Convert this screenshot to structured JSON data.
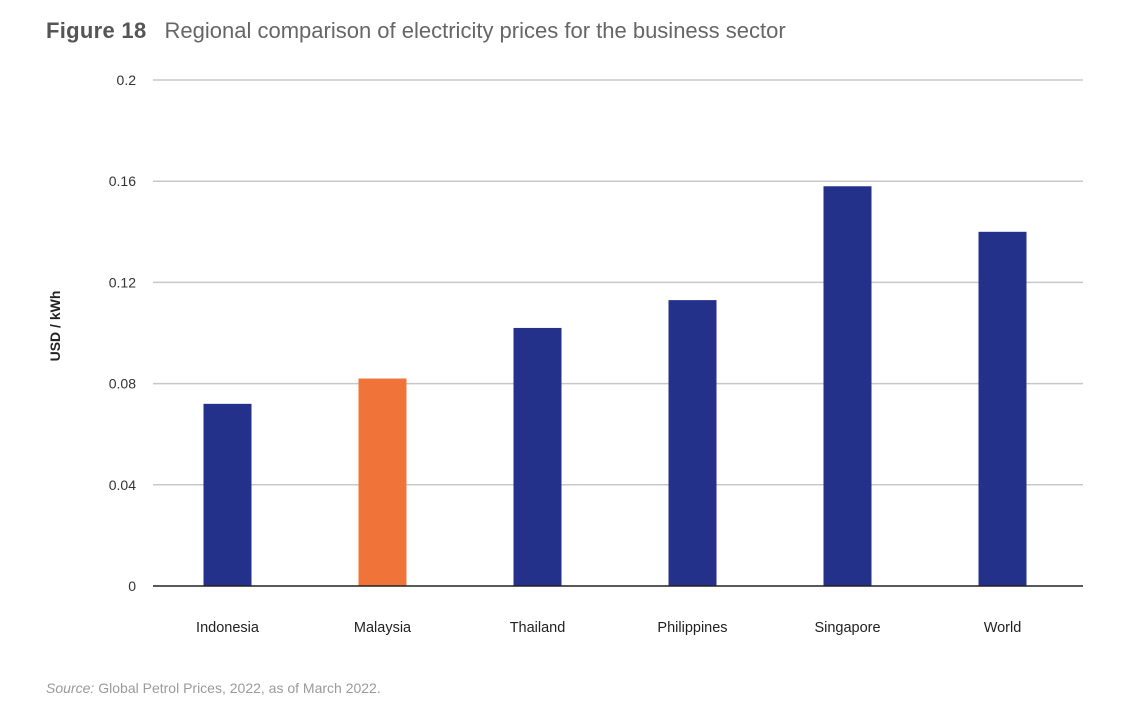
{
  "figure_label": "Figure 18",
  "source_label": "Source:",
  "source_text": "Global Petrol Prices, 2022, as of March 2022.",
  "chart_data": {
    "type": "bar",
    "title": "Regional comparison of electricity prices for the business sector",
    "xlabel": "",
    "ylabel": "USD / kWh",
    "ylim": [
      0,
      0.2
    ],
    "yticks": [
      "0",
      "0.04",
      "0.08",
      "0.12",
      "0.16",
      "0.2"
    ],
    "grid": true,
    "categories": [
      "Indonesia",
      "Malaysia",
      "Thailand",
      "Philippines",
      "Singapore",
      "World"
    ],
    "values": [
      0.072,
      0.082,
      0.102,
      0.113,
      0.158,
      0.14
    ],
    "colors": [
      "#24318a",
      "#f07339",
      "#24318a",
      "#24318a",
      "#24318a",
      "#24318a"
    ],
    "gridline_color": "#c8c8c8",
    "axis_color": "#222222"
  }
}
